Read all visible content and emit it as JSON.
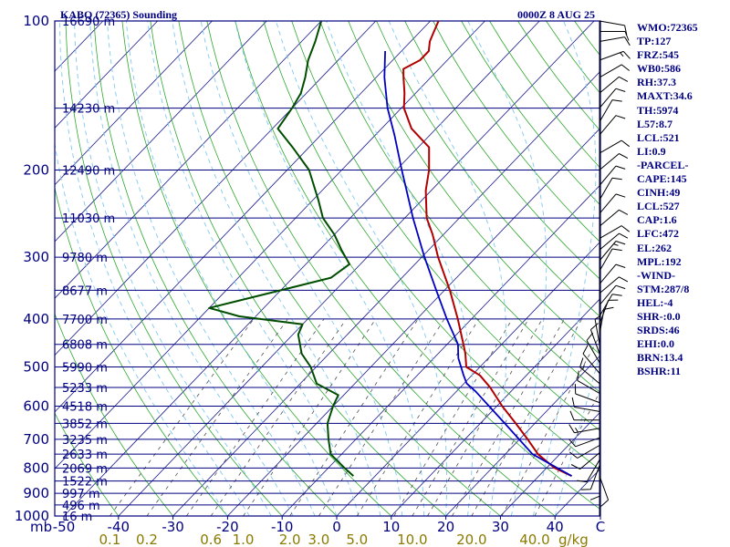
{
  "header": {
    "station": "KABQ (72365) Sounding",
    "time": "0000Z  8 AUG 25"
  },
  "axes": {
    "pressure_unit": "mb",
    "temperature_ticks": [
      "-50",
      "-40",
      "-30",
      "-20",
      "-10",
      "0",
      "10",
      "20",
      "30",
      "40",
      "C"
    ],
    "mixing_ratio_unit": "g/kg"
  },
  "chart_data": {
    "type": "skew-t log-p",
    "title": "KABQ (72365) Sounding",
    "x_unit": "C",
    "y_unit": "mb",
    "xlim": [
      -50,
      50
    ],
    "ylim": [
      1000,
      100
    ],
    "y_scale": "log",
    "pressure_levels": [
      {
        "p": 100,
        "label": "100"
      },
      {
        "p": 150,
        "label": ""
      },
      {
        "p": 200,
        "label": "200"
      },
      {
        "p": 250,
        "label": ""
      },
      {
        "p": 300,
        "label": "300"
      },
      {
        "p": 350,
        "label": ""
      },
      {
        "p": 400,
        "label": "400"
      },
      {
        "p": 450,
        "label": ""
      },
      {
        "p": 500,
        "label": "500"
      },
      {
        "p": 550,
        "label": ""
      },
      {
        "p": 600,
        "label": "600"
      },
      {
        "p": 650,
        "label": ""
      },
      {
        "p": 700,
        "label": "700"
      },
      {
        "p": 750,
        "label": ""
      },
      {
        "p": 800,
        "label": "800"
      },
      {
        "p": 850,
        "label": ""
      },
      {
        "p": 900,
        "label": "900"
      },
      {
        "p": 950,
        "label": ""
      },
      {
        "p": 1000,
        "label": "1000"
      }
    ],
    "height_labels": [
      {
        "p": 100,
        "text": "16690 m"
      },
      {
        "p": 150,
        "text": "14230 m"
      },
      {
        "p": 200,
        "text": "12490 m"
      },
      {
        "p": 250,
        "text": "11030 m"
      },
      {
        "p": 300,
        "text": "9780 m"
      },
      {
        "p": 350,
        "text": "8677 m"
      },
      {
        "p": 400,
        "text": "7700 m"
      },
      {
        "p": 450,
        "text": "6808 m"
      },
      {
        "p": 500,
        "text": "5990 m"
      },
      {
        "p": 550,
        "text": "5233 m"
      },
      {
        "p": 600,
        "text": "4518 m"
      },
      {
        "p": 650,
        "text": "3852 m"
      },
      {
        "p": 700,
        "text": "3235 m"
      },
      {
        "p": 750,
        "text": "2633 m"
      },
      {
        "p": 800,
        "text": "2069 m"
      },
      {
        "p": 850,
        "text": "1522 m"
      },
      {
        "p": 900,
        "text": "997 m"
      },
      {
        "p": 950,
        "text": "496 m"
      },
      {
        "p": 1000,
        "text": "16 m"
      }
    ],
    "mixing_ratio_labels": [
      {
        "w": 0.1,
        "text": "0.1"
      },
      {
        "w": 0.2,
        "text": "0.2"
      },
      {
        "w": 0.6,
        "text": "0.6"
      },
      {
        "w": 1.0,
        "text": "1.0"
      },
      {
        "w": 2.0,
        "text": "2.0"
      },
      {
        "w": 3.0,
        "text": "3.0"
      },
      {
        "w": 5.0,
        "text": "5.0"
      },
      {
        "w": 10.0,
        "text": "10.0"
      },
      {
        "w": 20.0,
        "text": "20.0"
      },
      {
        "w": 40.0,
        "text": "40.0"
      }
    ],
    "temperature": [
      {
        "p": 830,
        "t": 36.0
      },
      {
        "p": 800,
        "t": 31.5
      },
      {
        "p": 750,
        "t": 26.0
      },
      {
        "p": 700,
        "t": 21.5
      },
      {
        "p": 650,
        "t": 16.5
      },
      {
        "p": 600,
        "t": 11.0
      },
      {
        "p": 550,
        "t": 5.5
      },
      {
        "p": 520,
        "t": 1.5
      },
      {
        "p": 500,
        "t": -2.5
      },
      {
        "p": 470,
        "t": -5.0
      },
      {
        "p": 450,
        "t": -7.0
      },
      {
        "p": 400,
        "t": -12.5
      },
      {
        "p": 350,
        "t": -19.0
      },
      {
        "p": 300,
        "t": -27.0
      },
      {
        "p": 270,
        "t": -32.0
      },
      {
        "p": 250,
        "t": -36.0
      },
      {
        "p": 220,
        "t": -41.0
      },
      {
        "p": 200,
        "t": -44.0
      },
      {
        "p": 180,
        "t": -48.0
      },
      {
        "p": 165,
        "t": -54.5
      },
      {
        "p": 150,
        "t": -59.5
      },
      {
        "p": 140,
        "t": -62.0
      },
      {
        "p": 130,
        "t": -65.0
      },
      {
        "p": 125,
        "t": -66.5
      },
      {
        "p": 120,
        "t": -65.0
      },
      {
        "p": 115,
        "t": -65.0
      },
      {
        "p": 110,
        "t": -66.5
      },
      {
        "p": 105,
        "t": -67.5
      },
      {
        "p": 100,
        "t": -68.5
      }
    ],
    "dewpoint": [
      {
        "p": 830,
        "t": -4.0
      },
      {
        "p": 800,
        "t": -7.0
      },
      {
        "p": 750,
        "t": -12.0
      },
      {
        "p": 700,
        "t": -15.0
      },
      {
        "p": 650,
        "t": -18.0
      },
      {
        "p": 600,
        "t": -20.0
      },
      {
        "p": 570,
        "t": -21.0
      },
      {
        "p": 540,
        "t": -27.0
      },
      {
        "p": 500,
        "t": -31.0
      },
      {
        "p": 470,
        "t": -35.0
      },
      {
        "p": 430,
        "t": -39.0
      },
      {
        "p": 410,
        "t": -40.0
      },
      {
        "p": 395,
        "t": -53.0
      },
      {
        "p": 380,
        "t": -60.0
      },
      {
        "p": 350,
        "t": -50.0
      },
      {
        "p": 330,
        "t": -43.0
      },
      {
        "p": 310,
        "t": -42.0
      },
      {
        "p": 290,
        "t": -46.0
      },
      {
        "p": 270,
        "t": -50.0
      },
      {
        "p": 250,
        "t": -55.0
      },
      {
        "p": 230,
        "t": -59.0
      },
      {
        "p": 200,
        "t": -66.0
      },
      {
        "p": 180,
        "t": -73.0
      },
      {
        "p": 165,
        "t": -79.0
      },
      {
        "p": 150,
        "t": -80.0
      },
      {
        "p": 140,
        "t": -81.0
      },
      {
        "p": 130,
        "t": -83.0
      },
      {
        "p": 120,
        "t": -85.5
      },
      {
        "p": 110,
        "t": -87.5
      },
      {
        "p": 100,
        "t": -90.0
      }
    ],
    "parcel": [
      {
        "p": 830,
        "t": 36.0
      },
      {
        "p": 750,
        "t": 25.0
      },
      {
        "p": 650,
        "t": 14.5
      },
      {
        "p": 560,
        "t": 3.5
      },
      {
        "p": 540,
        "t": 0.5
      },
      {
        "p": 520,
        "t": -1.5
      },
      {
        "p": 480,
        "t": -5.5
      },
      {
        "p": 450,
        "t": -8.0
      },
      {
        "p": 400,
        "t": -14.5
      },
      {
        "p": 350,
        "t": -21.5
      },
      {
        "p": 300,
        "t": -29.5
      },
      {
        "p": 250,
        "t": -38.5
      },
      {
        "p": 200,
        "t": -49.0
      },
      {
        "p": 170,
        "t": -56.5
      },
      {
        "p": 150,
        "t": -62.5
      },
      {
        "p": 130,
        "t": -68.5
      },
      {
        "p": 115,
        "t": -73.0
      }
    ],
    "wind_barbs": [
      {
        "p": 830,
        "dir": 160,
        "spd": 10
      },
      {
        "p": 810,
        "dir": 180,
        "spd": 10
      },
      {
        "p": 790,
        "dir": 200,
        "spd": 10
      },
      {
        "p": 770,
        "dir": 210,
        "spd": 10
      },
      {
        "p": 745,
        "dir": 230,
        "spd": 10
      },
      {
        "p": 720,
        "dir": 240,
        "spd": 10
      },
      {
        "p": 695,
        "dir": 250,
        "spd": 10
      },
      {
        "p": 665,
        "dir": 260,
        "spd": 15
      },
      {
        "p": 640,
        "dir": 270,
        "spd": 10
      },
      {
        "p": 615,
        "dir": 280,
        "spd": 10
      },
      {
        "p": 590,
        "dir": 290,
        "spd": 10
      },
      {
        "p": 565,
        "dir": 300,
        "spd": 10
      },
      {
        "p": 540,
        "dir": 310,
        "spd": 15
      },
      {
        "p": 515,
        "dir": 320,
        "spd": 10
      },
      {
        "p": 490,
        "dir": 330,
        "spd": 10
      },
      {
        "p": 470,
        "dir": 340,
        "spd": 10
      },
      {
        "p": 450,
        "dir": 350,
        "spd": 5
      },
      {
        "p": 430,
        "dir": 10,
        "spd": 10
      },
      {
        "p": 410,
        "dir": 20,
        "spd": 10
      },
      {
        "p": 395,
        "dir": 30,
        "spd": 10
      },
      {
        "p": 375,
        "dir": 40,
        "spd": 10
      },
      {
        "p": 355,
        "dir": 50,
        "spd": 10
      },
      {
        "p": 340,
        "dir": 40,
        "spd": 10
      },
      {
        "p": 320,
        "dir": 30,
        "spd": 10
      },
      {
        "p": 305,
        "dir": 40,
        "spd": 15
      },
      {
        "p": 290,
        "dir": 50,
        "spd": 10
      },
      {
        "p": 275,
        "dir": 60,
        "spd": 10
      },
      {
        "p": 260,
        "dir": 50,
        "spd": 10
      },
      {
        "p": 245,
        "dir": 40,
        "spd": 10
      },
      {
        "p": 230,
        "dir": 30,
        "spd": 10
      },
      {
        "p": 215,
        "dir": 40,
        "spd": 10
      },
      {
        "p": 200,
        "dir": 50,
        "spd": 10
      },
      {
        "p": 185,
        "dir": 60,
        "spd": 10
      },
      {
        "p": 170,
        "dir": 40,
        "spd": 10
      },
      {
        "p": 160,
        "dir": 30,
        "spd": 10
      },
      {
        "p": 150,
        "dir": 40,
        "spd": 10
      },
      {
        "p": 140,
        "dir": 50,
        "spd": 10
      },
      {
        "p": 130,
        "dir": 60,
        "spd": 10
      },
      {
        "p": 120,
        "dir": 70,
        "spd": 15
      },
      {
        "p": 110,
        "dir": 80,
        "spd": 10
      },
      {
        "p": 105,
        "dir": 90,
        "spd": 10
      },
      {
        "p": 100,
        "dir": 100,
        "spd": 10
      }
    ]
  },
  "indices": [
    "WMO:72365",
    "TP:127",
    "FRZ:545",
    "WB0:586",
    "RH:37.3",
    "MAXT:34.6",
    "TH:5974",
    "L57:8.7",
    "LCL:521",
    "LI:0.9",
    "-PARCEL-",
    "CAPE:145",
    "CINH:49",
    "LCL:527",
    "CAP:1.6",
    "LFC:472",
    "EL:262",
    "MPL:192",
    "-WIND-",
    "STM:287/8",
    "HEL:-4",
    "SHR-:0.0",
    "SRDS:46",
    "EHI:0.0",
    "BRN:13.4",
    "BSHR:11"
  ],
  "colors": {
    "isobar": "#000080",
    "isotherm": "#1a1a8c",
    "dry_adiabat": "#2fa82f",
    "moist_adiabat": "#7fc9f0",
    "mixing_ratio": "#505050",
    "temperature": "#b00000",
    "dewpoint": "#004d00",
    "parcel": "#0000c0",
    "text": "#000080",
    "mixing_label": "#8b7a00",
    "barb": "#000000"
  }
}
